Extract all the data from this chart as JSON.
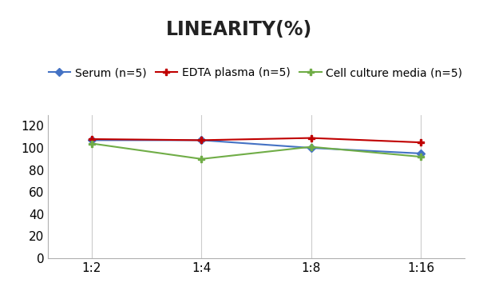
{
  "title": "LINEARITY(%)",
  "x_labels": [
    "1:2",
    "1:4",
    "1:8",
    "1:16"
  ],
  "x_positions": [
    0,
    1,
    2,
    3
  ],
  "series": [
    {
      "label": "Serum (n=5)",
      "values": [
        107,
        107,
        100,
        95
      ],
      "color": "#4472C4",
      "marker": "D",
      "marker_size": 5,
      "linewidth": 1.5
    },
    {
      "label": "EDTA plasma (n=5)",
      "values": [
        108,
        107,
        109,
        105
      ],
      "color": "#C00000",
      "marker": "P",
      "marker_size": 6,
      "linewidth": 1.5
    },
    {
      "label": "Cell culture media (n=5)",
      "values": [
        104,
        90,
        101,
        92
      ],
      "color": "#70AD47",
      "marker": "P",
      "marker_size": 6,
      "linewidth": 1.5
    }
  ],
  "ylim": [
    0,
    130
  ],
  "yticks": [
    0,
    20,
    40,
    60,
    80,
    100,
    120
  ],
  "background_color": "#ffffff",
  "title_fontsize": 17,
  "legend_fontsize": 10,
  "tick_fontsize": 11
}
